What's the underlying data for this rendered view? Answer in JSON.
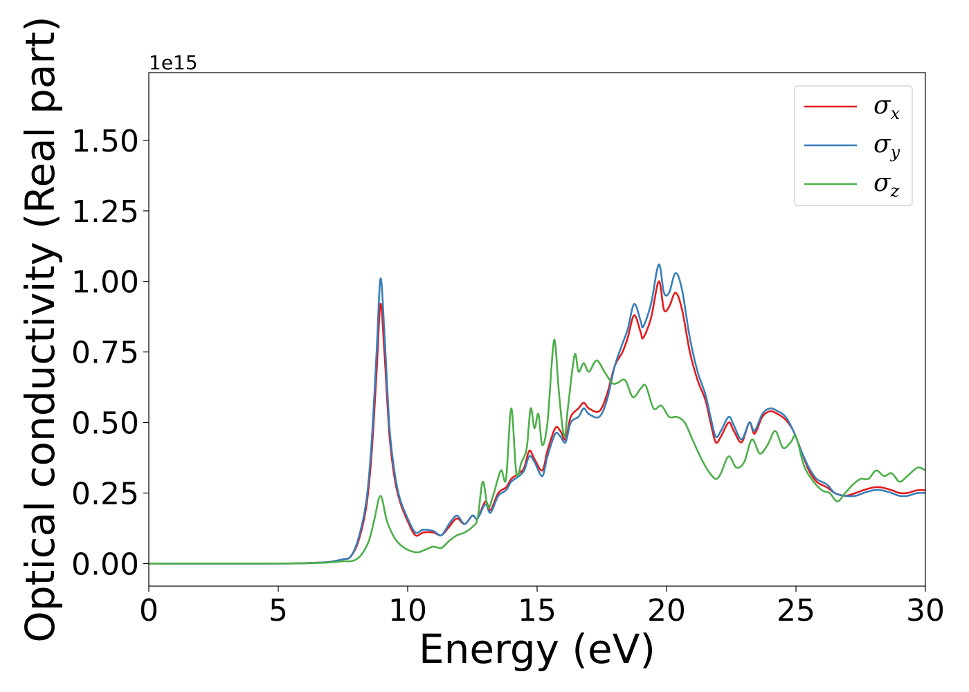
{
  "chart_data": {
    "type": "line",
    "title": "",
    "xlabel": "Energy (eV)",
    "ylabel": "Optical conductivity (Real part)",
    "y_offset_text": "1e15",
    "xlim": [
      0,
      30
    ],
    "ylim": [
      -0.08,
      1.74
    ],
    "x_ticks": [
      0,
      5,
      10,
      15,
      20,
      25,
      30
    ],
    "y_ticks": [
      0.0,
      0.25,
      0.5,
      0.75,
      1.0,
      1.25,
      1.5
    ],
    "x_tick_labels": [
      "0",
      "5",
      "10",
      "15",
      "20",
      "25",
      "30"
    ],
    "y_tick_labels": [
      "0.00",
      "0.25",
      "0.50",
      "0.75",
      "1.00",
      "1.25",
      "1.50"
    ],
    "grid": false,
    "legend_position": "top-right",
    "series": [
      {
        "name": "σx",
        "symbol": "σ",
        "subscript": "x",
        "color": "#e41a1c",
        "points": [
          [
            0,
            0
          ],
          [
            5,
            0
          ],
          [
            6.5,
            0.003
          ],
          [
            7,
            0.006
          ],
          [
            7.5,
            0.015
          ],
          [
            7.8,
            0.025
          ],
          [
            8.1,
            0.08
          ],
          [
            8.4,
            0.2
          ],
          [
            8.6,
            0.38
          ],
          [
            8.8,
            0.68
          ],
          [
            8.95,
            0.92
          ],
          [
            9.1,
            0.75
          ],
          [
            9.3,
            0.45
          ],
          [
            9.5,
            0.3
          ],
          [
            9.7,
            0.22
          ],
          [
            10,
            0.15
          ],
          [
            10.3,
            0.1
          ],
          [
            10.6,
            0.11
          ],
          [
            11,
            0.11
          ],
          [
            11.3,
            0.1
          ],
          [
            11.6,
            0.13
          ],
          [
            11.9,
            0.16
          ],
          [
            12.2,
            0.14
          ],
          [
            12.5,
            0.17
          ],
          [
            12.7,
            0.16
          ],
          [
            13,
            0.22
          ],
          [
            13.2,
            0.19
          ],
          [
            13.5,
            0.25
          ],
          [
            13.8,
            0.27
          ],
          [
            14,
            0.3
          ],
          [
            14.3,
            0.32
          ],
          [
            14.5,
            0.34
          ],
          [
            14.7,
            0.4
          ],
          [
            14.9,
            0.37
          ],
          [
            15.2,
            0.33
          ],
          [
            15.4,
            0.4
          ],
          [
            15.7,
            0.48
          ],
          [
            15.9,
            0.47
          ],
          [
            16.1,
            0.44
          ],
          [
            16.3,
            0.52
          ],
          [
            16.6,
            0.55
          ],
          [
            16.8,
            0.57
          ],
          [
            17,
            0.55
          ],
          [
            17.4,
            0.54
          ],
          [
            17.7,
            0.6
          ],
          [
            18,
            0.7
          ],
          [
            18.3,
            0.75
          ],
          [
            18.5,
            0.8
          ],
          [
            18.75,
            0.88
          ],
          [
            19,
            0.82
          ],
          [
            19.1,
            0.8
          ],
          [
            19.4,
            0.87
          ],
          [
            19.7,
            1.0
          ],
          [
            19.9,
            0.9
          ],
          [
            20.1,
            0.91
          ],
          [
            20.35,
            0.96
          ],
          [
            20.6,
            0.9
          ],
          [
            20.9,
            0.75
          ],
          [
            21.2,
            0.65
          ],
          [
            21.5,
            0.58
          ],
          [
            21.7,
            0.5
          ],
          [
            21.9,
            0.43
          ],
          [
            22.1,
            0.45
          ],
          [
            22.4,
            0.5
          ],
          [
            22.6,
            0.47
          ],
          [
            22.9,
            0.43
          ],
          [
            23.2,
            0.5
          ],
          [
            23.4,
            0.46
          ],
          [
            23.7,
            0.52
          ],
          [
            24,
            0.54
          ],
          [
            24.3,
            0.53
          ],
          [
            24.6,
            0.51
          ],
          [
            24.9,
            0.47
          ],
          [
            25.2,
            0.4
          ],
          [
            25.5,
            0.33
          ],
          [
            25.8,
            0.29
          ],
          [
            26.2,
            0.27
          ],
          [
            26.5,
            0.25
          ],
          [
            26.9,
            0.24
          ],
          [
            27.3,
            0.25
          ],
          [
            27.6,
            0.26
          ],
          [
            28,
            0.27
          ],
          [
            28.3,
            0.27
          ],
          [
            28.7,
            0.26
          ],
          [
            29,
            0.25
          ],
          [
            29.3,
            0.25
          ],
          [
            29.7,
            0.26
          ],
          [
            30,
            0.26
          ]
        ]
      },
      {
        "name": "σy",
        "symbol": "σ",
        "subscript": "y",
        "color": "#377eb8",
        "points": [
          [
            0,
            0
          ],
          [
            5,
            0
          ],
          [
            6.5,
            0.003
          ],
          [
            7,
            0.006
          ],
          [
            7.5,
            0.015
          ],
          [
            7.8,
            0.025
          ],
          [
            8.1,
            0.09
          ],
          [
            8.4,
            0.22
          ],
          [
            8.6,
            0.42
          ],
          [
            8.8,
            0.75
          ],
          [
            8.95,
            1.01
          ],
          [
            9.1,
            0.82
          ],
          [
            9.3,
            0.48
          ],
          [
            9.5,
            0.32
          ],
          [
            9.7,
            0.23
          ],
          [
            10,
            0.16
          ],
          [
            10.3,
            0.11
          ],
          [
            10.6,
            0.12
          ],
          [
            11,
            0.115
          ],
          [
            11.3,
            0.1
          ],
          [
            11.6,
            0.14
          ],
          [
            11.9,
            0.17
          ],
          [
            12.2,
            0.14
          ],
          [
            12.5,
            0.17
          ],
          [
            12.7,
            0.16
          ],
          [
            13,
            0.21
          ],
          [
            13.2,
            0.18
          ],
          [
            13.5,
            0.24
          ],
          [
            13.8,
            0.26
          ],
          [
            14,
            0.29
          ],
          [
            14.3,
            0.31
          ],
          [
            14.5,
            0.33
          ],
          [
            14.7,
            0.38
          ],
          [
            14.9,
            0.36
          ],
          [
            15.2,
            0.31
          ],
          [
            15.4,
            0.38
          ],
          [
            15.7,
            0.46
          ],
          [
            15.9,
            0.45
          ],
          [
            16.1,
            0.43
          ],
          [
            16.3,
            0.5
          ],
          [
            16.6,
            0.52
          ],
          [
            16.8,
            0.55
          ],
          [
            17,
            0.53
          ],
          [
            17.4,
            0.52
          ],
          [
            17.7,
            0.58
          ],
          [
            18,
            0.7
          ],
          [
            18.3,
            0.78
          ],
          [
            18.5,
            0.83
          ],
          [
            18.75,
            0.92
          ],
          [
            19,
            0.86
          ],
          [
            19.1,
            0.84
          ],
          [
            19.4,
            0.92
          ],
          [
            19.7,
            1.06
          ],
          [
            19.9,
            0.96
          ],
          [
            20.1,
            0.96
          ],
          [
            20.35,
            1.03
          ],
          [
            20.6,
            0.97
          ],
          [
            20.9,
            0.8
          ],
          [
            21.2,
            0.68
          ],
          [
            21.5,
            0.6
          ],
          [
            21.7,
            0.52
          ],
          [
            21.9,
            0.45
          ],
          [
            22.1,
            0.47
          ],
          [
            22.4,
            0.52
          ],
          [
            22.6,
            0.49
          ],
          [
            22.9,
            0.44
          ],
          [
            23.2,
            0.5
          ],
          [
            23.4,
            0.47
          ],
          [
            23.7,
            0.53
          ],
          [
            24,
            0.55
          ],
          [
            24.3,
            0.54
          ],
          [
            24.6,
            0.52
          ],
          [
            24.9,
            0.47
          ],
          [
            25.2,
            0.4
          ],
          [
            25.5,
            0.34
          ],
          [
            25.8,
            0.3
          ],
          [
            26.2,
            0.28
          ],
          [
            26.5,
            0.25
          ],
          [
            26.9,
            0.24
          ],
          [
            27.3,
            0.24
          ],
          [
            27.6,
            0.25
          ],
          [
            28,
            0.26
          ],
          [
            28.3,
            0.26
          ],
          [
            28.7,
            0.25
          ],
          [
            29,
            0.24
          ],
          [
            29.3,
            0.24
          ],
          [
            29.7,
            0.25
          ],
          [
            30,
            0.25
          ]
        ]
      },
      {
        "name": "σz",
        "symbol": "σ",
        "subscript": "z",
        "color": "#4daf4a",
        "points": [
          [
            0,
            0
          ],
          [
            5,
            0
          ],
          [
            6.5,
            0.002
          ],
          [
            7,
            0.004
          ],
          [
            7.5,
            0.008
          ],
          [
            7.9,
            0.01
          ],
          [
            8.2,
            0.03
          ],
          [
            8.5,
            0.08
          ],
          [
            8.7,
            0.15
          ],
          [
            8.95,
            0.24
          ],
          [
            9.2,
            0.15
          ],
          [
            9.5,
            0.09
          ],
          [
            9.8,
            0.06
          ],
          [
            10.1,
            0.045
          ],
          [
            10.4,
            0.04
          ],
          [
            10.7,
            0.05
          ],
          [
            11,
            0.06
          ],
          [
            11.3,
            0.055
          ],
          [
            11.6,
            0.08
          ],
          [
            11.9,
            0.1
          ],
          [
            12.2,
            0.11
          ],
          [
            12.5,
            0.13
          ],
          [
            12.7,
            0.16
          ],
          [
            12.9,
            0.29
          ],
          [
            13.1,
            0.2
          ],
          [
            13.3,
            0.24
          ],
          [
            13.6,
            0.33
          ],
          [
            13.8,
            0.3
          ],
          [
            14,
            0.55
          ],
          [
            14.2,
            0.32
          ],
          [
            14.4,
            0.36
          ],
          [
            14.6,
            0.41
          ],
          [
            14.75,
            0.55
          ],
          [
            14.9,
            0.48
          ],
          [
            15.05,
            0.53
          ],
          [
            15.2,
            0.42
          ],
          [
            15.4,
            0.5
          ],
          [
            15.6,
            0.75
          ],
          [
            15.7,
            0.78
          ],
          [
            15.85,
            0.6
          ],
          [
            16.05,
            0.45
          ],
          [
            16.2,
            0.56
          ],
          [
            16.45,
            0.74
          ],
          [
            16.6,
            0.68
          ],
          [
            16.8,
            0.71
          ],
          [
            17,
            0.68
          ],
          [
            17.3,
            0.72
          ],
          [
            17.6,
            0.68
          ],
          [
            17.9,
            0.64
          ],
          [
            18.1,
            0.64
          ],
          [
            18.4,
            0.65
          ],
          [
            18.7,
            0.59
          ],
          [
            19,
            0.62
          ],
          [
            19.2,
            0.63
          ],
          [
            19.5,
            0.55
          ],
          [
            19.8,
            0.56
          ],
          [
            20.1,
            0.52
          ],
          [
            20.4,
            0.52
          ],
          [
            20.7,
            0.5
          ],
          [
            21,
            0.44
          ],
          [
            21.3,
            0.38
          ],
          [
            21.6,
            0.33
          ],
          [
            21.9,
            0.3
          ],
          [
            22.1,
            0.32
          ],
          [
            22.4,
            0.38
          ],
          [
            22.7,
            0.34
          ],
          [
            23,
            0.36
          ],
          [
            23.3,
            0.44
          ],
          [
            23.6,
            0.39
          ],
          [
            23.9,
            0.42
          ],
          [
            24.2,
            0.47
          ],
          [
            24.5,
            0.41
          ],
          [
            24.8,
            0.43
          ],
          [
            25,
            0.45
          ],
          [
            25.3,
            0.35
          ],
          [
            25.6,
            0.3
          ],
          [
            26,
            0.26
          ],
          [
            26.3,
            0.25
          ],
          [
            26.6,
            0.22
          ],
          [
            26.9,
            0.25
          ],
          [
            27.2,
            0.28
          ],
          [
            27.5,
            0.3
          ],
          [
            27.8,
            0.3
          ],
          [
            28.1,
            0.33
          ],
          [
            28.4,
            0.31
          ],
          [
            28.7,
            0.32
          ],
          [
            29,
            0.29
          ],
          [
            29.3,
            0.31
          ],
          [
            29.7,
            0.34
          ],
          [
            30,
            0.33
          ]
        ]
      }
    ]
  }
}
